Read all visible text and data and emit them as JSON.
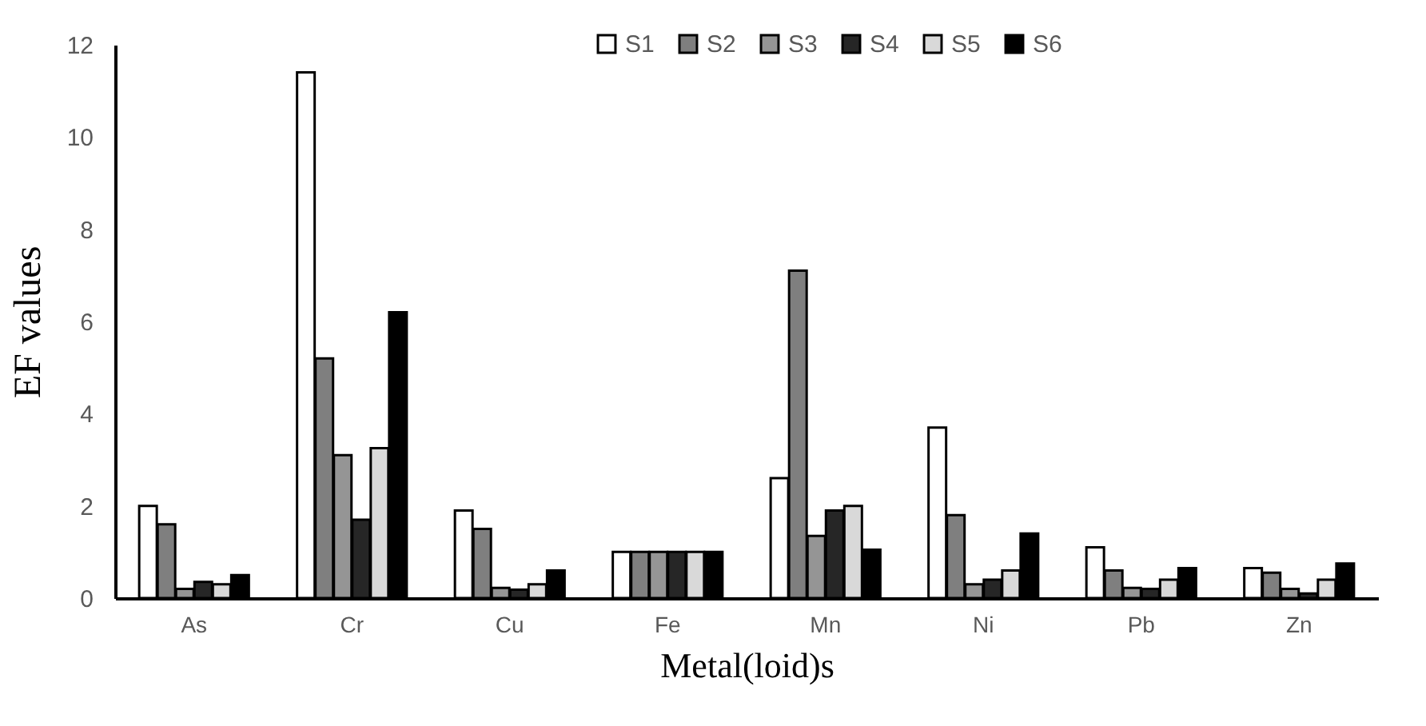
{
  "chart_data": {
    "type": "bar",
    "xlabel": "Metal(loid)s",
    "ylabel": "EF values",
    "categories": [
      "As",
      "Cr",
      "Cu",
      "Fe",
      "Mn",
      "Ni",
      "Pb",
      "Zn"
    ],
    "series": [
      {
        "name": "S1",
        "color": "#ffffff",
        "values": [
          2.0,
          11.4,
          1.9,
          1.0,
          2.6,
          3.7,
          1.1,
          0.65
        ]
      },
      {
        "name": "S2",
        "color": "#7f7f7f",
        "values": [
          1.6,
          5.2,
          1.5,
          1.0,
          7.1,
          1.8,
          0.6,
          0.55
        ]
      },
      {
        "name": "S3",
        "color": "#959595",
        "values": [
          0.2,
          3.1,
          0.22,
          1.0,
          1.35,
          0.3,
          0.22,
          0.2
        ]
      },
      {
        "name": "S4",
        "color": "#262626",
        "values": [
          0.35,
          1.7,
          0.18,
          1.0,
          1.9,
          0.4,
          0.2,
          0.1
        ]
      },
      {
        "name": "S5",
        "color": "#d9d9d9",
        "values": [
          0.3,
          3.25,
          0.3,
          1.0,
          2.0,
          0.6,
          0.4,
          0.4
        ]
      },
      {
        "name": "S6",
        "color": "#000000",
        "values": [
          0.5,
          6.2,
          0.6,
          1.0,
          1.05,
          1.4,
          0.65,
          0.75
        ]
      }
    ],
    "ylim": [
      0,
      12
    ],
    "yticks": [
      0,
      2,
      4,
      6,
      8,
      10,
      12
    ],
    "grid": false,
    "legend": "top"
  }
}
